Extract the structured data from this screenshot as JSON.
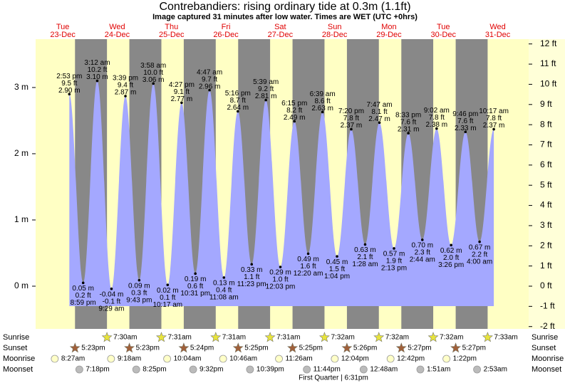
{
  "chart_data": {
    "type": "tide",
    "title": "Contrebandiers: rising  ordinary tide at 0.3m (1.1ft)",
    "subtitle": "Image captured 31 minutes after low water. Times are WET (UTC +0hrs)",
    "ylim": [
      -0.645,
      3.73
    ],
    "yticks": [
      {
        "value": 3,
        "label": "3 m"
      },
      {
        "value": 2,
        "label": "2 m"
      },
      {
        "value": 1,
        "label": "1 m"
      },
      {
        "value": 0,
        "label": "0 m"
      }
    ],
    "y2lim": [
      -2.116,
      12.237
    ],
    "y2ticks": [
      {
        "value": 12,
        "label": "12 ft"
      },
      {
        "value": 11,
        "label": "11 ft"
      },
      {
        "value": 10,
        "label": "10 ft"
      },
      {
        "value": 9,
        "label": "9 ft"
      },
      {
        "value": 8,
        "label": "8 ft"
      },
      {
        "value": 7,
        "label": "7 ft"
      },
      {
        "value": 6,
        "label": "6 ft"
      },
      {
        "value": 5,
        "label": "5 ft"
      },
      {
        "value": 4,
        "label": "4 ft"
      },
      {
        "value": 3,
        "label": "3 ft"
      },
      {
        "value": 2,
        "label": "2 ft"
      },
      {
        "value": 1,
        "label": "1 ft"
      },
      {
        "value": 0,
        "label": "0 ft"
      },
      {
        "value": -1,
        "label": "-1 ft"
      },
      {
        "value": -2,
        "label": "-2 ft"
      }
    ],
    "row_labels": {
      "sunrise": "Sunrise",
      "sunset": "Sunset",
      "moonrise": "Moonrise",
      "moonset": "Moonset"
    },
    "moon_phase": "First Quarter | 6:31pm",
    "days": [
      {
        "weekday": "Tue",
        "date": "23-Dec",
        "sunrise": null,
        "sunset": "5:23pm",
        "moonrise": "8:27am",
        "moonset": "7:18pm",
        "tides": [
          {
            "time": "2:53 pm",
            "height": 2.9,
            "height_label": "2.90 m",
            "feet_label": "9.5 ft"
          },
          {
            "time": "8:59 pm",
            "height": 0.05,
            "height_label": "0.05 m",
            "feet_label": "0.2 ft"
          }
        ]
      },
      {
        "weekday": "Wed",
        "date": "24-Dec",
        "sunrise": "7:30am",
        "sunset": "5:23pm",
        "moonrise": "9:18am",
        "moonset": "8:25pm",
        "tides": [
          {
            "time": "3:12 am",
            "height": 3.1,
            "height_label": "3.10 m",
            "feet_label": "10.2 ft"
          },
          {
            "time": "9:29 am",
            "height": -0.04,
            "height_label": "-0.04 m",
            "feet_label": "-0.1 ft"
          },
          {
            "time": "3:39 pm",
            "height": 2.87,
            "height_label": "2.87 m",
            "feet_label": "9.4 ft"
          },
          {
            "time": "9:43 pm",
            "height": 0.09,
            "height_label": "0.09 m",
            "feet_label": "0.3 ft"
          }
        ]
      },
      {
        "weekday": "Thu",
        "date": "25-Dec",
        "sunrise": "7:31am",
        "sunset": "5:24pm",
        "moonrise": "10:04am",
        "moonset": "9:32pm",
        "tides": [
          {
            "time": "3:58 am",
            "height": 3.06,
            "height_label": "3.06 m",
            "feet_label": "10.0 ft"
          },
          {
            "time": "10:17 am",
            "height": 0.02,
            "height_label": "0.02 m",
            "feet_label": "0.1 ft"
          },
          {
            "time": "4:27 pm",
            "height": 2.77,
            "height_label": "2.77 m",
            "feet_label": "9.1 ft"
          },
          {
            "time": "10:31 pm",
            "height": 0.19,
            "height_label": "0.19 m",
            "feet_label": "0.6 ft"
          }
        ]
      },
      {
        "weekday": "Fri",
        "date": "26-Dec",
        "sunrise": "7:31am",
        "sunset": "5:25pm",
        "moonrise": "10:46am",
        "moonset": "10:39pm",
        "tides": [
          {
            "time": "4:47 am",
            "height": 2.96,
            "height_label": "2.96 m",
            "feet_label": "9.7 ft"
          },
          {
            "time": "11:08 am",
            "height": 0.13,
            "height_label": "0.13 m",
            "feet_label": "0.4 ft"
          },
          {
            "time": "5:16 pm",
            "height": 2.64,
            "height_label": "2.64 m",
            "feet_label": "8.7 ft"
          },
          {
            "time": "11:23 pm",
            "height": 0.33,
            "height_label": "0.33 m",
            "feet_label": "1.1 ft"
          }
        ]
      },
      {
        "weekday": "Sat",
        "date": "27-Dec",
        "sunrise": "7:31am",
        "sunset": "5:25pm",
        "moonrise": "11:26am",
        "moonset": "11:44pm",
        "tides": [
          {
            "time": "5:39 am",
            "height": 2.81,
            "height_label": "2.81 m",
            "feet_label": "9.2 ft"
          },
          {
            "time": "12:03 pm",
            "height": 0.29,
            "height_label": "0.29 m",
            "feet_label": "1.0 ft"
          },
          {
            "time": "6:15 pm",
            "height": 2.49,
            "height_label": "2.49 m",
            "feet_label": "8.2 ft"
          }
        ]
      },
      {
        "weekday": "Sun",
        "date": "28-Dec",
        "sunrise": "7:32am",
        "sunset": "5:26pm",
        "moonrise": "12:04pm",
        "moonset": null,
        "tides": [
          {
            "time": "12:20 am",
            "height": 0.49,
            "height_label": "0.49 m",
            "feet_label": "1.6 ft"
          },
          {
            "time": "6:39 am",
            "height": 2.63,
            "height_label": "2.63 m",
            "feet_label": "8.6 ft"
          },
          {
            "time": "1:04 pm",
            "height": 0.45,
            "height_label": "0.45 m",
            "feet_label": "1.5 ft"
          },
          {
            "time": "7:20 pm",
            "height": 2.37,
            "height_label": "2.37 m",
            "feet_label": "7.8 ft"
          }
        ]
      },
      {
        "weekday": "Mon",
        "date": "29-Dec",
        "sunrise": "7:32am",
        "sunset": "5:27pm",
        "moonrise": "12:42pm",
        "moonset": "12:48am",
        "tides": [
          {
            "time": "1:28 am",
            "height": 0.63,
            "height_label": "0.63 m",
            "feet_label": "2.1 ft"
          },
          {
            "time": "7:47 am",
            "height": 2.47,
            "height_label": "2.47 m",
            "feet_label": "8.1 ft"
          },
          {
            "time": "2:13 pm",
            "height": 0.57,
            "height_label": "0.57 m",
            "feet_label": "1.9 ft"
          },
          {
            "time": "8:33 pm",
            "height": 2.31,
            "height_label": "2.31 m",
            "feet_label": "7.6 ft"
          }
        ]
      },
      {
        "weekday": "Tue",
        "date": "30-Dec",
        "sunrise": "7:32am",
        "sunset": "5:27pm",
        "moonrise": "1:22pm",
        "moonset": "1:51am",
        "tides": [
          {
            "time": "2:44 am",
            "height": 0.7,
            "height_label": "0.70 m",
            "feet_label": "2.3 ft"
          },
          {
            "time": "9:02 am",
            "height": 2.38,
            "height_label": "2.38 m",
            "feet_label": "7.8 ft"
          },
          {
            "time": "3:26 pm",
            "height": 0.62,
            "height_label": "0.62 m",
            "feet_label": "2.0 ft"
          },
          {
            "time": "9:46 pm",
            "height": 2.33,
            "height_label": "2.33 m",
            "feet_label": "7.6 ft"
          }
        ]
      },
      {
        "weekday": "Wed",
        "date": "31-Dec",
        "sunrise": "7:33am",
        "sunset": null,
        "moonrise": null,
        "moonset": "2:53am",
        "tides": [
          {
            "time": "4:00 am",
            "height": 0.67,
            "height_label": "0.67 m",
            "feet_label": "2.2 ft"
          },
          {
            "time": "10:17 am",
            "height": 2.37,
            "height_label": "2.37 m",
            "feet_label": "7.8 ft"
          }
        ]
      }
    ]
  }
}
